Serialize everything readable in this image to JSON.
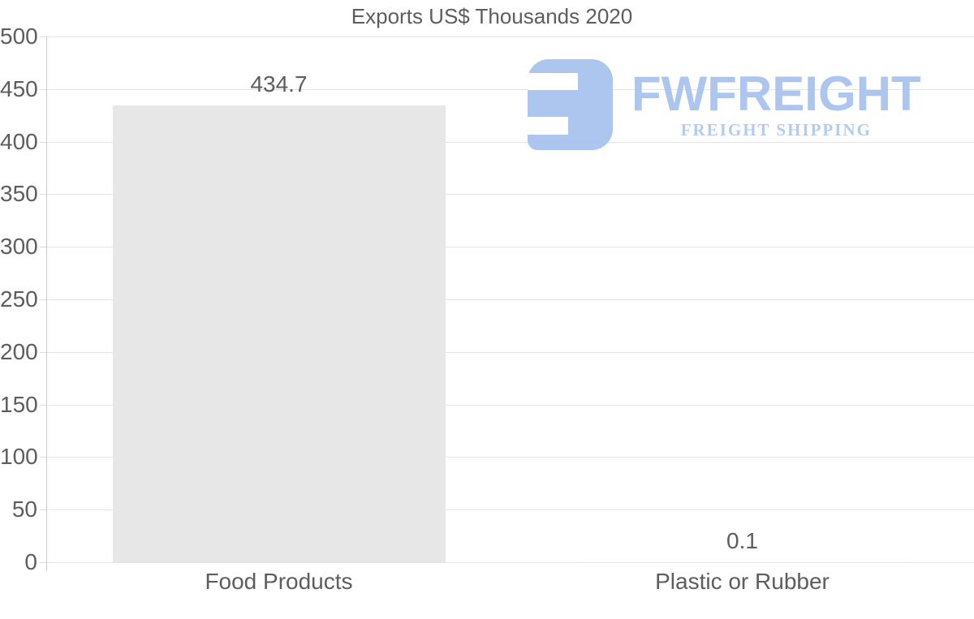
{
  "title": "Exports US$ Thousands 2020",
  "watermark": {
    "brand": "FWFREIGHT",
    "tagline": "FREIGHT SHIPPING",
    "brand_color": "#a8c3f0",
    "tagline_color": "#aec9f3",
    "icon_color": "#a8c3f0"
  },
  "chart_data": {
    "type": "bar",
    "title": "Exports US$ Thousands 2020",
    "categories": [
      "Food Products",
      "Plastic or Rubber"
    ],
    "values": [
      434.7,
      0.1
    ],
    "value_labels": [
      "434.7",
      "0.1"
    ],
    "xlabel": "",
    "ylabel": "",
    "ylim": [
      0,
      500
    ],
    "yticks": [
      0,
      50,
      100,
      150,
      200,
      250,
      300,
      350,
      400,
      450,
      500
    ],
    "grid": true,
    "legend": false,
    "bar_color": "#e7e7e7",
    "grid_color": "#e4e4e4",
    "tick_color": "#dcdcdc",
    "axis_color": "#c9c9c9",
    "label_color": "#5d5d5d"
  }
}
